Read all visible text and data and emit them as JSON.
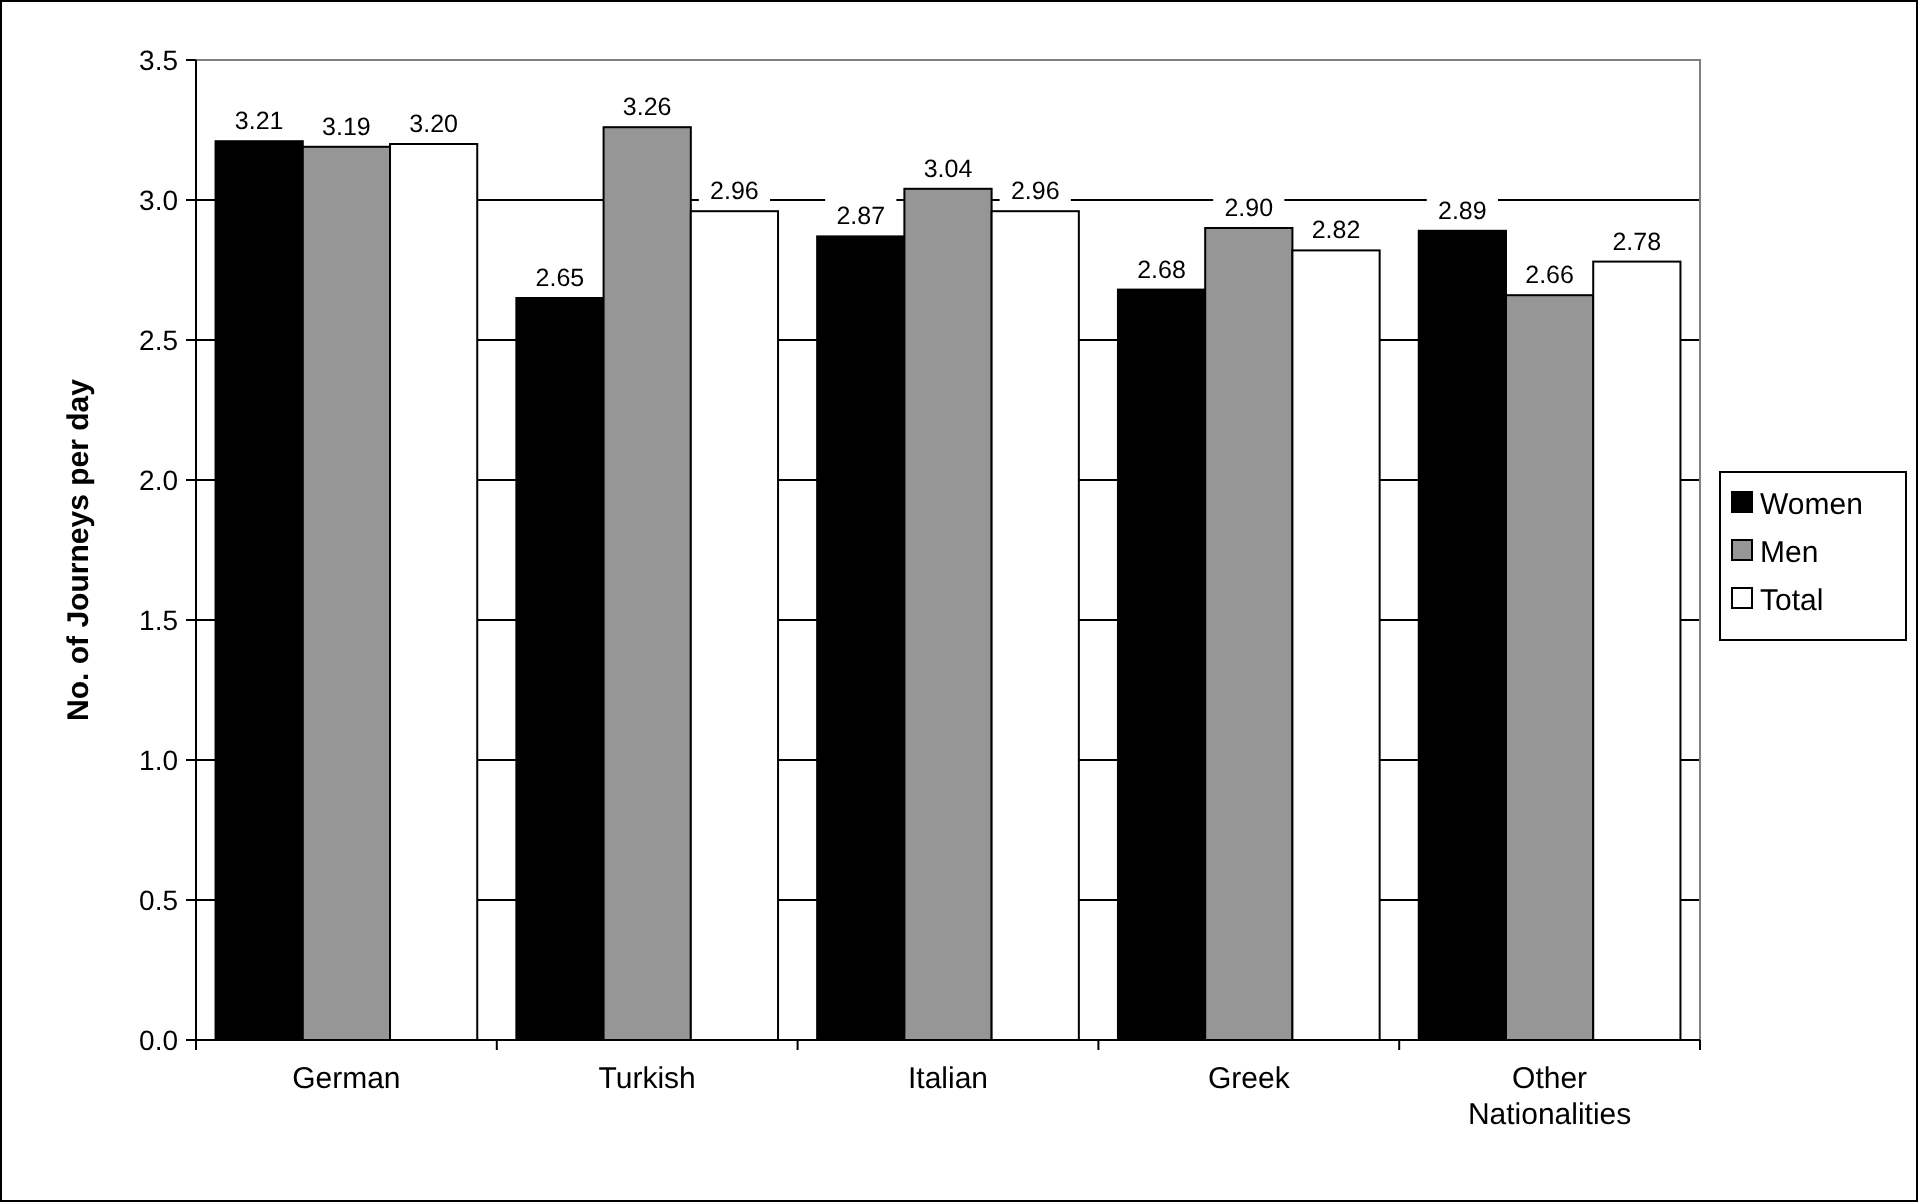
{
  "chart_data": {
    "type": "bar",
    "ylabel": "No. of Journeys per day",
    "categories": [
      "German",
      "Turkish",
      "Italian",
      "Greek",
      "Other Nationalities"
    ],
    "series": [
      {
        "name": "Women",
        "color": "#000000",
        "values": [
          3.21,
          2.65,
          2.87,
          2.68,
          2.89
        ]
      },
      {
        "name": "Men",
        "color": "#969696",
        "values": [
          3.19,
          3.26,
          3.04,
          2.9,
          2.66
        ]
      },
      {
        "name": "Total",
        "color": "#ffffff",
        "values": [
          3.2,
          2.96,
          2.96,
          2.82,
          2.78
        ]
      }
    ],
    "value_labels": [
      [
        "3.21",
        "2.65",
        "2.87",
        "2.68",
        "2.89"
      ],
      [
        "3.19",
        "3.26",
        "3.04",
        "2.90",
        "2.66"
      ],
      [
        "3.20",
        "2.96",
        "2.96",
        "2.82",
        "2.78"
      ]
    ],
    "ylim": [
      0,
      3.5
    ],
    "yticks": [
      {
        "value": 0,
        "label": "0.0"
      },
      {
        "value": 0.5,
        "label": "0.5"
      },
      {
        "value": 1,
        "label": "1.0"
      },
      {
        "value": 1.5,
        "label": "1.5"
      },
      {
        "value": 2,
        "label": "2.0"
      },
      {
        "value": 2.5,
        "label": "2.5"
      },
      {
        "value": 3,
        "label": "3.0"
      },
      {
        "value": 3.5,
        "label": "3.5"
      }
    ],
    "grid": "y",
    "legend": "right"
  }
}
